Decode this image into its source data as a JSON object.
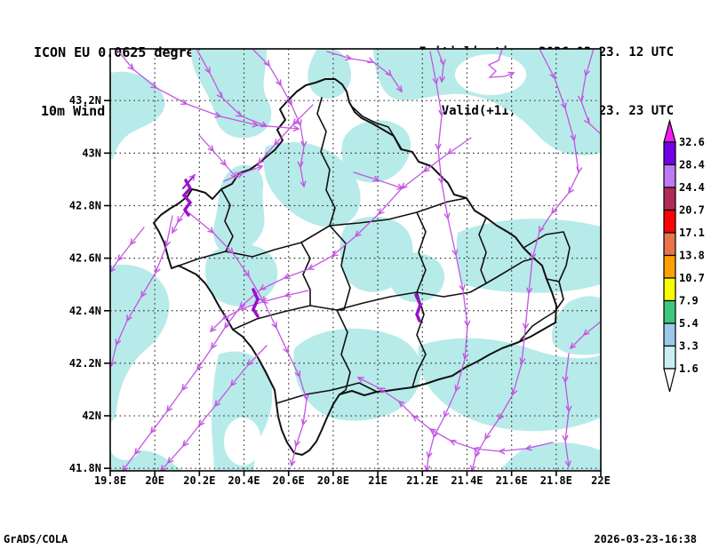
{
  "title": {
    "line1": "ICON EU 0.0625 degree",
    "line2": "10m Wind [m/s]"
  },
  "run_info": {
    "line1": "Initialisation: 2026.03.23. 12 UTC",
    "line2": "Valid(+11): 2026.MAR.23. 23 UTC"
  },
  "footer": {
    "left": "GrADS/COLA",
    "right": "2026-03-23-16:38"
  },
  "axes": {
    "x_tick_labels": [
      "19.8E",
      "20E",
      "20.2E",
      "20.4E",
      "20.6E",
      "20.8E",
      "21E",
      "21.2E",
      "21.4E",
      "21.6E",
      "21.8E",
      "22E"
    ],
    "y_tick_labels": [
      "43.2N",
      "43N",
      "42.8N",
      "42.6N",
      "42.4N",
      "42.2N",
      "42N",
      "41.8N"
    ]
  },
  "colorbar": {
    "tick_labels": [
      "32.6",
      "28.4",
      "24.4",
      "20.7",
      "17.1",
      "13.8",
      "10.7",
      "7.9",
      "5.4",
      "3.3",
      "1.6"
    ],
    "segment_colors_top_to_bottom": [
      "#7101e7",
      "#bf79f2",
      "#b02c58",
      "#fa0505",
      "#ea744a",
      "#fca104",
      "#fbfb02",
      "#3dc87e",
      "#9cc8ea",
      "#c9eff2"
    ],
    "above_max_color": "#f31af3",
    "below_min_color": "#ffffff"
  },
  "map_colors": {
    "shade": "#b7ebe9",
    "streamline": "#c455e2",
    "streamline_dense": "#9a10cb",
    "boundary": "#111111",
    "grid": "#2b2b2b",
    "frame": "#000000"
  }
}
